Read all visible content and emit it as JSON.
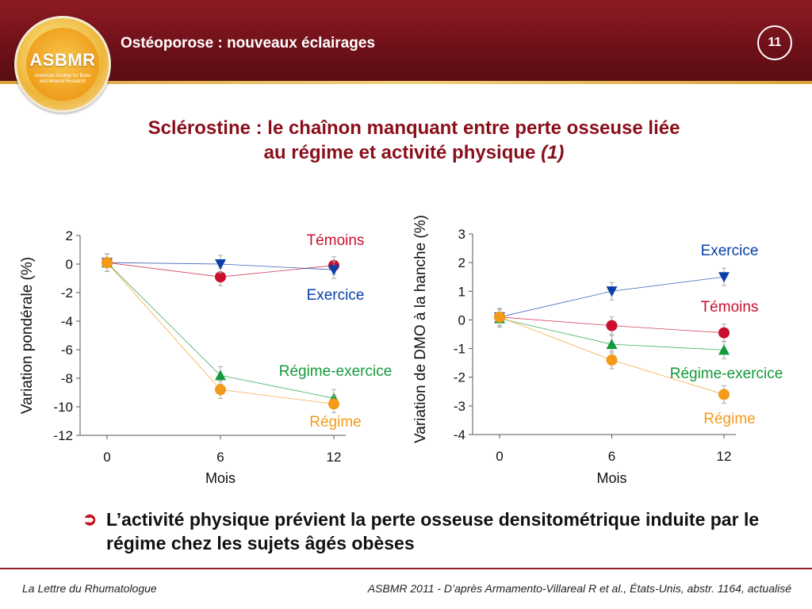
{
  "header": {
    "title": "Ostéoporose : nouveaux éclairages",
    "page_number": "11",
    "logo": {
      "text": "ASBMR",
      "subtitle": "American Society for Bone and Mineral Research"
    }
  },
  "slide": {
    "title_line1": "Sclérostine : le chaînon manquant entre perte osseuse liée",
    "title_line2": "au régime et activité physique",
    "title_ref": "(1)"
  },
  "colors": {
    "temoins": "#c8102e",
    "exercice": "#0a3fa8",
    "regime_exercice": "#149a3a",
    "regime": "#f39a1a"
  },
  "chart_data": [
    {
      "type": "line",
      "ylabel": "Variation pondérale (%)",
      "xlabel": "Mois",
      "x": [
        0,
        6,
        12
      ],
      "xticks": [
        "0",
        "6",
        "12"
      ],
      "yticks": [
        "2",
        "0",
        "-2",
        "-4",
        "-6",
        "-8",
        "-10",
        "-12"
      ],
      "ylim": [
        -12,
        2
      ],
      "series": [
        {
          "name": "Témoins",
          "marker": "circle",
          "color": "#c8102e",
          "values": [
            0.1,
            -0.9,
            -0.1
          ]
        },
        {
          "name": "Exercice",
          "marker": "triangle-down",
          "color": "#0a3fa8",
          "values": [
            0.1,
            0,
            -0.4
          ]
        },
        {
          "name": "Régime-exercice",
          "marker": "triangle-up",
          "color": "#149a3a",
          "values": [
            0.1,
            -7.8,
            -9.4
          ]
        },
        {
          "name": "Régime",
          "marker": "circle",
          "color": "#f39a1a",
          "values": [
            0.1,
            -8.8,
            -9.8
          ]
        }
      ]
    },
    {
      "type": "line",
      "ylabel": "Variation de DMO à la hanche (%)",
      "xlabel": "Mois",
      "x": [
        0,
        6,
        12
      ],
      "xticks": [
        "0",
        "6",
        "12"
      ],
      "yticks": [
        "3",
        "2",
        "1",
        "0",
        "-1",
        "-2",
        "-3",
        "-4"
      ],
      "ylim": [
        -4,
        3
      ],
      "series": [
        {
          "name": "Exercice",
          "marker": "triangle-down",
          "color": "#0a3fa8",
          "values": [
            0.1,
            1.0,
            1.5
          ]
        },
        {
          "name": "Témoins",
          "marker": "circle",
          "color": "#c8102e",
          "values": [
            0.1,
            -0.2,
            -0.45
          ]
        },
        {
          "name": "Régime-exercice",
          "marker": "triangle-up",
          "color": "#149a3a",
          "values": [
            0.05,
            -0.85,
            -1.05
          ]
        },
        {
          "name": "Régime",
          "marker": "circle",
          "color": "#f39a1a",
          "values": [
            0.1,
            -1.4,
            -2.6
          ]
        }
      ]
    }
  ],
  "bullet": {
    "text": "L’activité physique prévient la perte osseuse densitométrique induite par le régime chez les sujets âgés obèses"
  },
  "footer": {
    "left": "La Lettre du Rhumatologue",
    "right": "ASBMR 2011 - D’après Armamento-Villareal R et al., États-Unis, abstr. 1164, actualisé"
  }
}
